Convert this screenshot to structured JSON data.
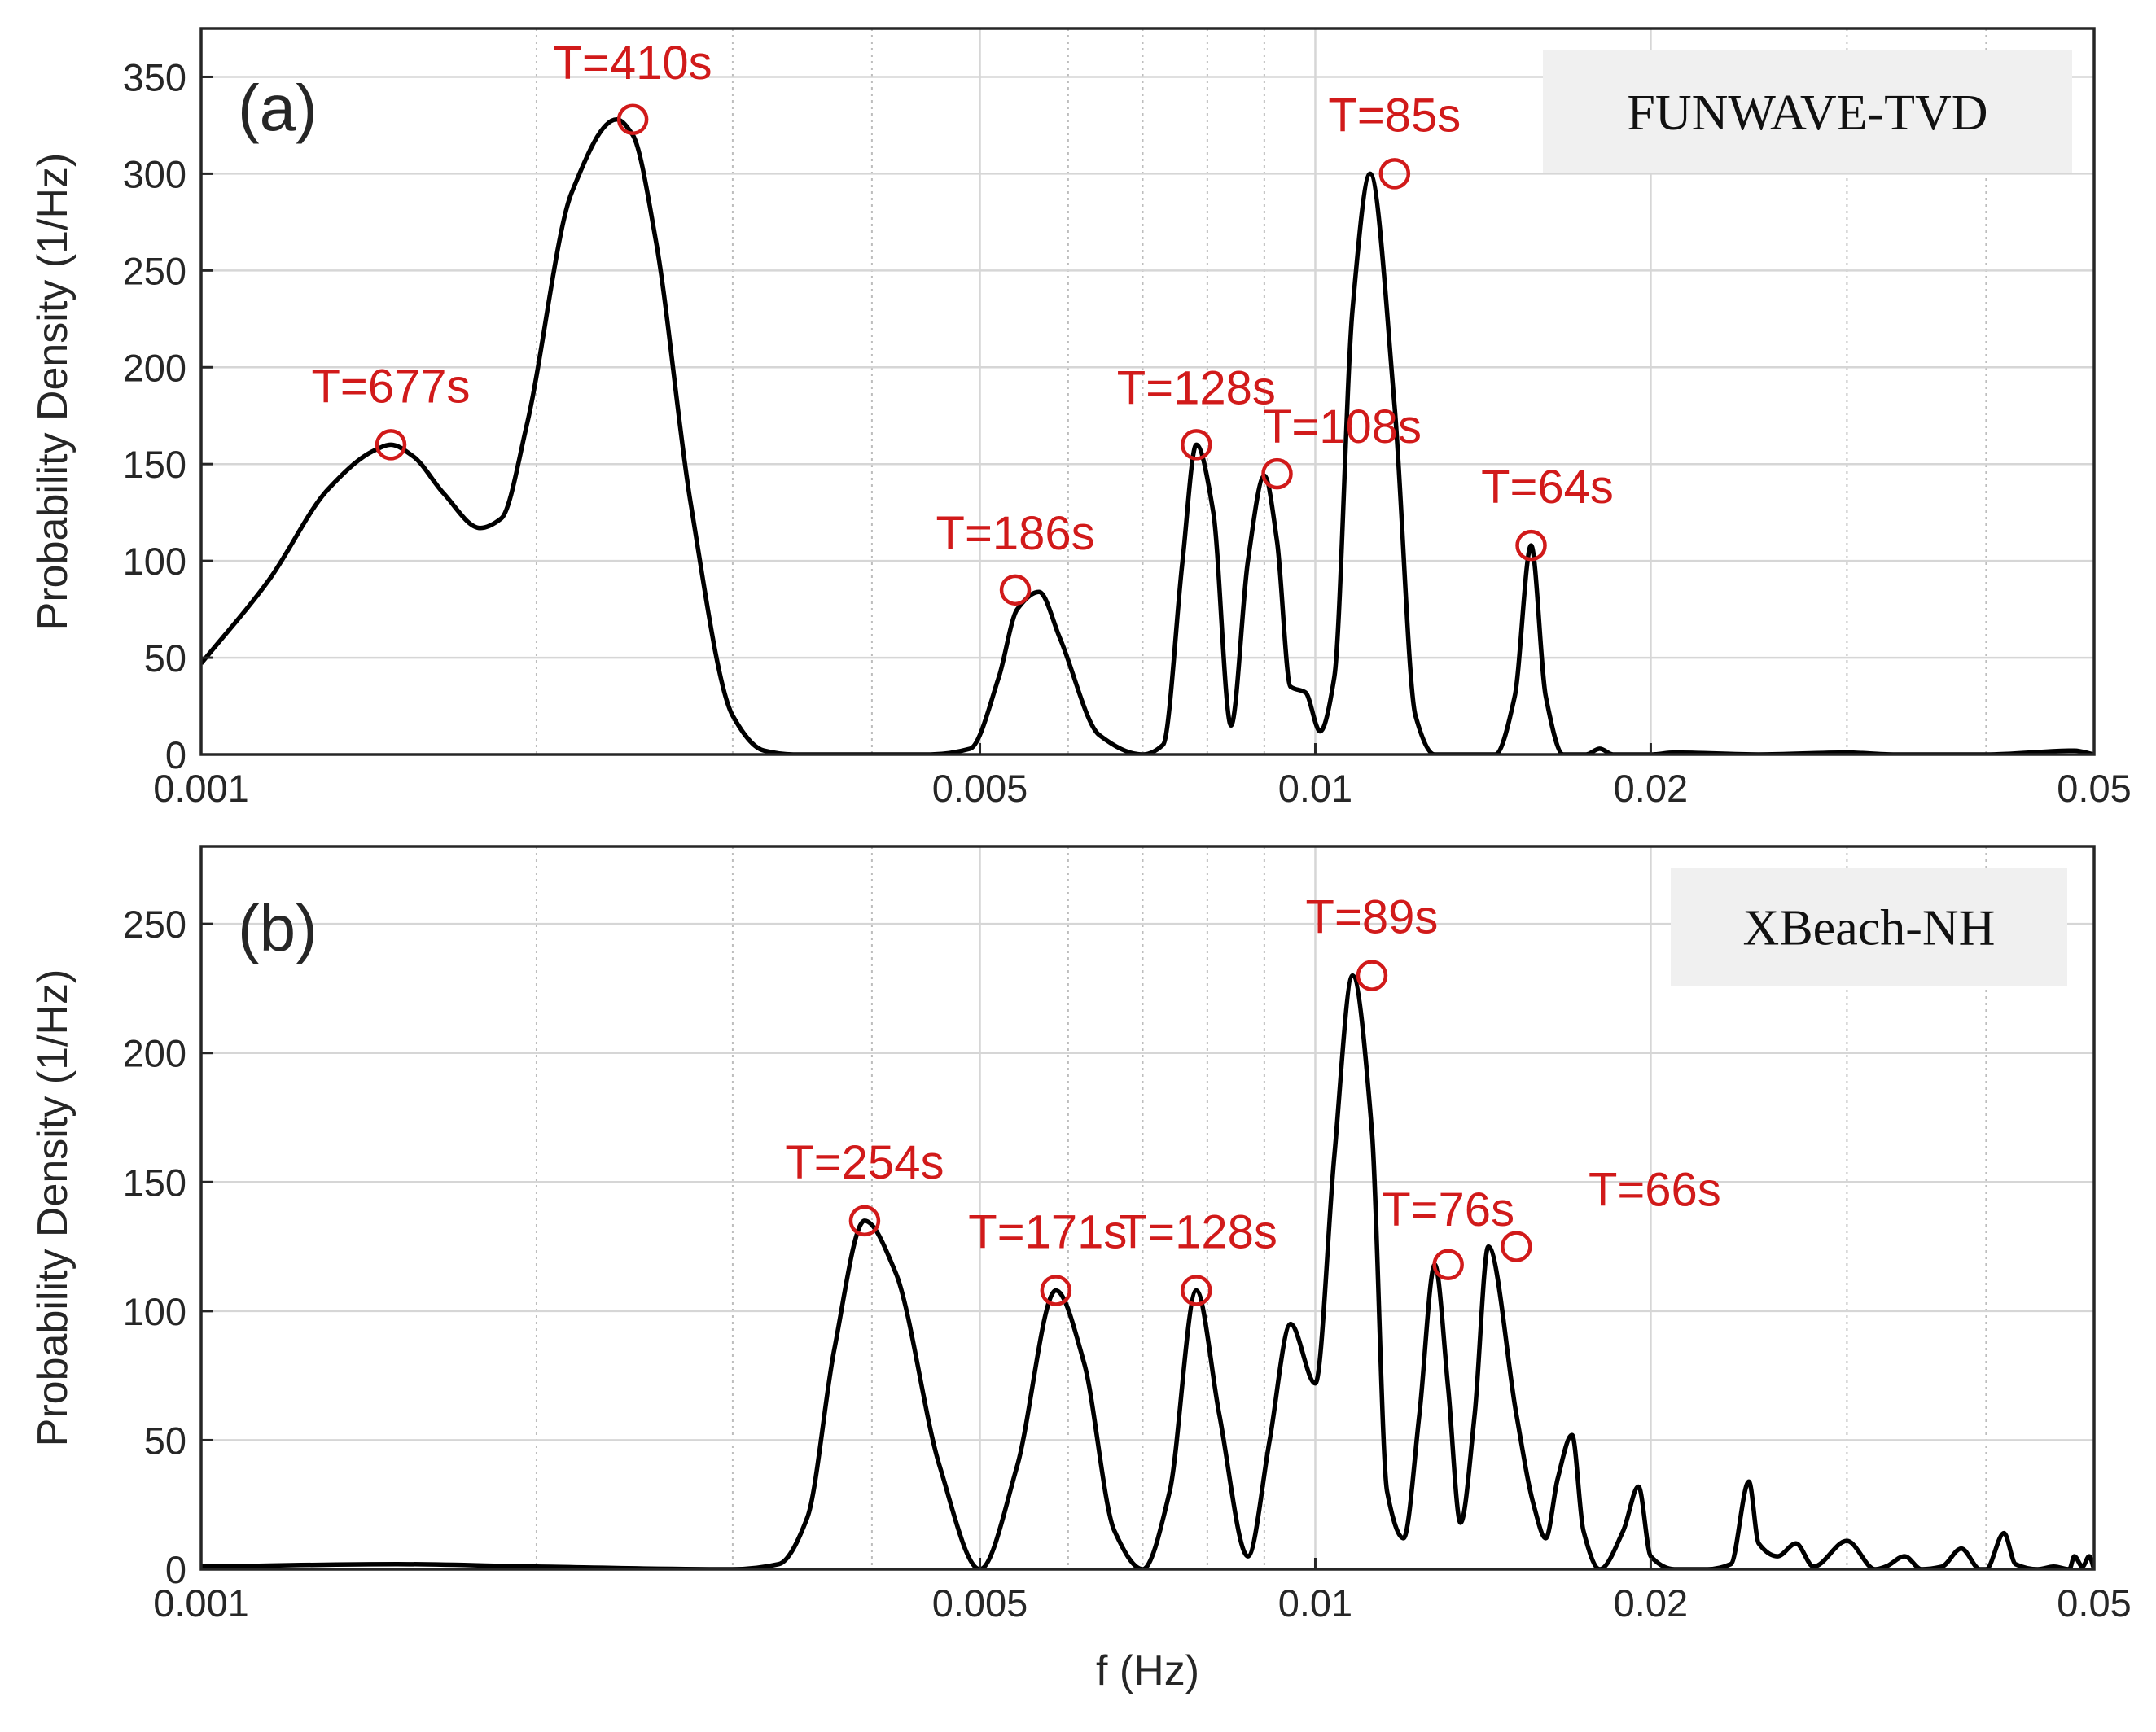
{
  "chart_data": [
    {
      "type": "line",
      "panel_label": "(a)",
      "model_label": "FUNWAVE-TVD",
      "ylabel": "Probability Density (1/Hz)",
      "xlabel": "",
      "xscale": "log",
      "xlim": [
        0.001,
        0.05
      ],
      "ylim": [
        0,
        375
      ],
      "x_ticks": [
        0.001,
        0.005,
        0.01,
        0.02,
        0.05
      ],
      "x_tick_labels": [
        "0.001",
        "0.005",
        "0.01",
        "0.02",
        "0.05"
      ],
      "y_ticks": [
        0,
        50,
        100,
        150,
        200,
        250,
        300,
        350
      ],
      "y_tick_labels": [
        "0",
        "50",
        "100",
        "150",
        "200",
        "250",
        "300",
        "350"
      ],
      "grid": true,
      "line_color": "#000000",
      "marker_color": "#d11a1a",
      "series": [
        {
          "name": "spectrum",
          "x": [
            0.001,
            0.00115,
            0.0013,
            0.00143,
            0.00148,
            0.00155,
            0.00165,
            0.00178,
            0.00186,
            0.00196,
            0.00215,
            0.00236,
            0.00244,
            0.00256,
            0.00275,
            0.003,
            0.0032,
            0.0034,
            0.0036,
            0.0039,
            0.0045,
            0.0049,
            0.0052,
            0.0054,
            0.00565,
            0.0059,
            0.0064,
            0.007,
            0.0073,
            0.0076,
            0.00782,
            0.0081,
            0.0084,
            0.0087,
            0.009,
            0.00924,
            0.0095,
            0.0098,
            0.0101,
            0.0104,
            0.0108,
            0.0112,
            0.01178,
            0.0123,
            0.0128,
            0.0135,
            0.0145,
            0.0151,
            0.01562,
            0.0161,
            0.0167,
            0.0175,
            0.018,
            0.0185,
            0.02,
            0.021,
            0.025,
            0.03,
            0.033,
            0.04,
            0.048,
            0.05
          ],
          "values": [
            47,
            90,
            137,
            157,
            160,
            154,
            135,
            117,
            122,
            170,
            290,
            328,
            320,
            265,
            130,
            20,
            2,
            0,
            0,
            0,
            0,
            3,
            40,
            75,
            84,
            60,
            10,
            0,
            5,
            100,
            160,
            125,
            15,
            100,
            144,
            110,
            35,
            32,
            12,
            40,
            230,
            300,
            180,
            20,
            0,
            0,
            0,
            30,
            108,
            30,
            0,
            0,
            3,
            0,
            0,
            1,
            0,
            1,
            0,
            0,
            2,
            0
          ]
        }
      ],
      "annotations": [
        {
          "label": "T=677s",
          "x": 0.00148,
          "y": 160
        },
        {
          "label": "T=410s",
          "x": 0.00244,
          "y": 328
        },
        {
          "label": "T=186s",
          "x": 0.00538,
          "y": 85
        },
        {
          "label": "T=128s",
          "x": 0.00782,
          "y": 160
        },
        {
          "label": "T=108s",
          "x": 0.00924,
          "y": 145
        },
        {
          "label": "T=85s",
          "x": 0.01178,
          "y": 300
        },
        {
          "label": "T=64s",
          "x": 0.01562,
          "y": 108
        }
      ]
    },
    {
      "type": "line",
      "panel_label": "(b)",
      "model_label": "XBeach-NH",
      "ylabel": "Probability Density (1/Hz)",
      "xlabel": "f (Hz)",
      "xscale": "log",
      "xlim": [
        0.001,
        0.05
      ],
      "ylim": [
        0,
        280
      ],
      "x_ticks": [
        0.001,
        0.005,
        0.01,
        0.02,
        0.05
      ],
      "x_tick_labels": [
        "0.001",
        "0.005",
        "0.01",
        "0.02",
        "0.05"
      ],
      "y_ticks": [
        0,
        50,
        100,
        150,
        200,
        250
      ],
      "y_tick_labels": [
        "0",
        "50",
        "100",
        "150",
        "200",
        "250"
      ],
      "grid": true,
      "line_color": "#000000",
      "marker_color": "#d11a1a",
      "series": [
        {
          "name": "spectrum",
          "x": [
            0.001,
            0.0015,
            0.002,
            0.003,
            0.0033,
            0.0035,
            0.0037,
            0.00394,
            0.0042,
            0.0046,
            0.005,
            0.0054,
            0.00585,
            0.0062,
            0.0066,
            0.007,
            0.0074,
            0.00782,
            0.0082,
            0.0087,
            0.0091,
            0.0095,
            0.01,
            0.0104,
            0.0108,
            0.01124,
            0.0116,
            0.012,
            0.0124,
            0.0128,
            0.01316,
            0.0135,
            0.0139,
            0.0143,
            0.01515,
            0.0157,
            0.0161,
            0.0165,
            0.017,
            0.0174,
            0.018,
            0.0189,
            0.0195,
            0.02,
            0.021,
            0.0225,
            0.0236,
            0.0245,
            0.025,
            0.026,
            0.027,
            0.028,
            0.03,
            0.0318,
            0.0325,
            0.0338,
            0.035,
            0.0365,
            0.038,
            0.0395,
            0.04,
            0.0415,
            0.0425,
            0.0445,
            0.046,
            0.0475,
            0.048,
            0.0488,
            0.0495,
            0.05
          ],
          "values": [
            1,
            2,
            1,
            0,
            2,
            20,
            85,
            135,
            115,
            40,
            0,
            40,
            108,
            80,
            15,
            0,
            30,
            108,
            60,
            5,
            50,
            95,
            72,
            160,
            230,
            170,
            30,
            12,
            60,
            118,
            70,
            18,
            60,
            125,
            60,
            25,
            12,
            35,
            52,
            15,
            0,
            15,
            32,
            5,
            0,
            0,
            2,
            34,
            10,
            5,
            10,
            1,
            11,
            0,
            1,
            5,
            0,
            1,
            8,
            0,
            0,
            14,
            2,
            0,
            1,
            0,
            5,
            1,
            5,
            0
          ]
        }
      ],
      "annotations": [
        {
          "label": "T=254s",
          "x": 0.00394,
          "y": 135
        },
        {
          "label": "T=171s",
          "x": 0.00585,
          "y": 108
        },
        {
          "label": "T=128s",
          "x": 0.00782,
          "y": 108
        },
        {
          "label": "T=89s",
          "x": 0.01124,
          "y": 230
        },
        {
          "label": "T=76s",
          "x": 0.01316,
          "y": 118
        },
        {
          "label": "T=66s",
          "x": 0.01515,
          "y": 125
        }
      ]
    }
  ]
}
